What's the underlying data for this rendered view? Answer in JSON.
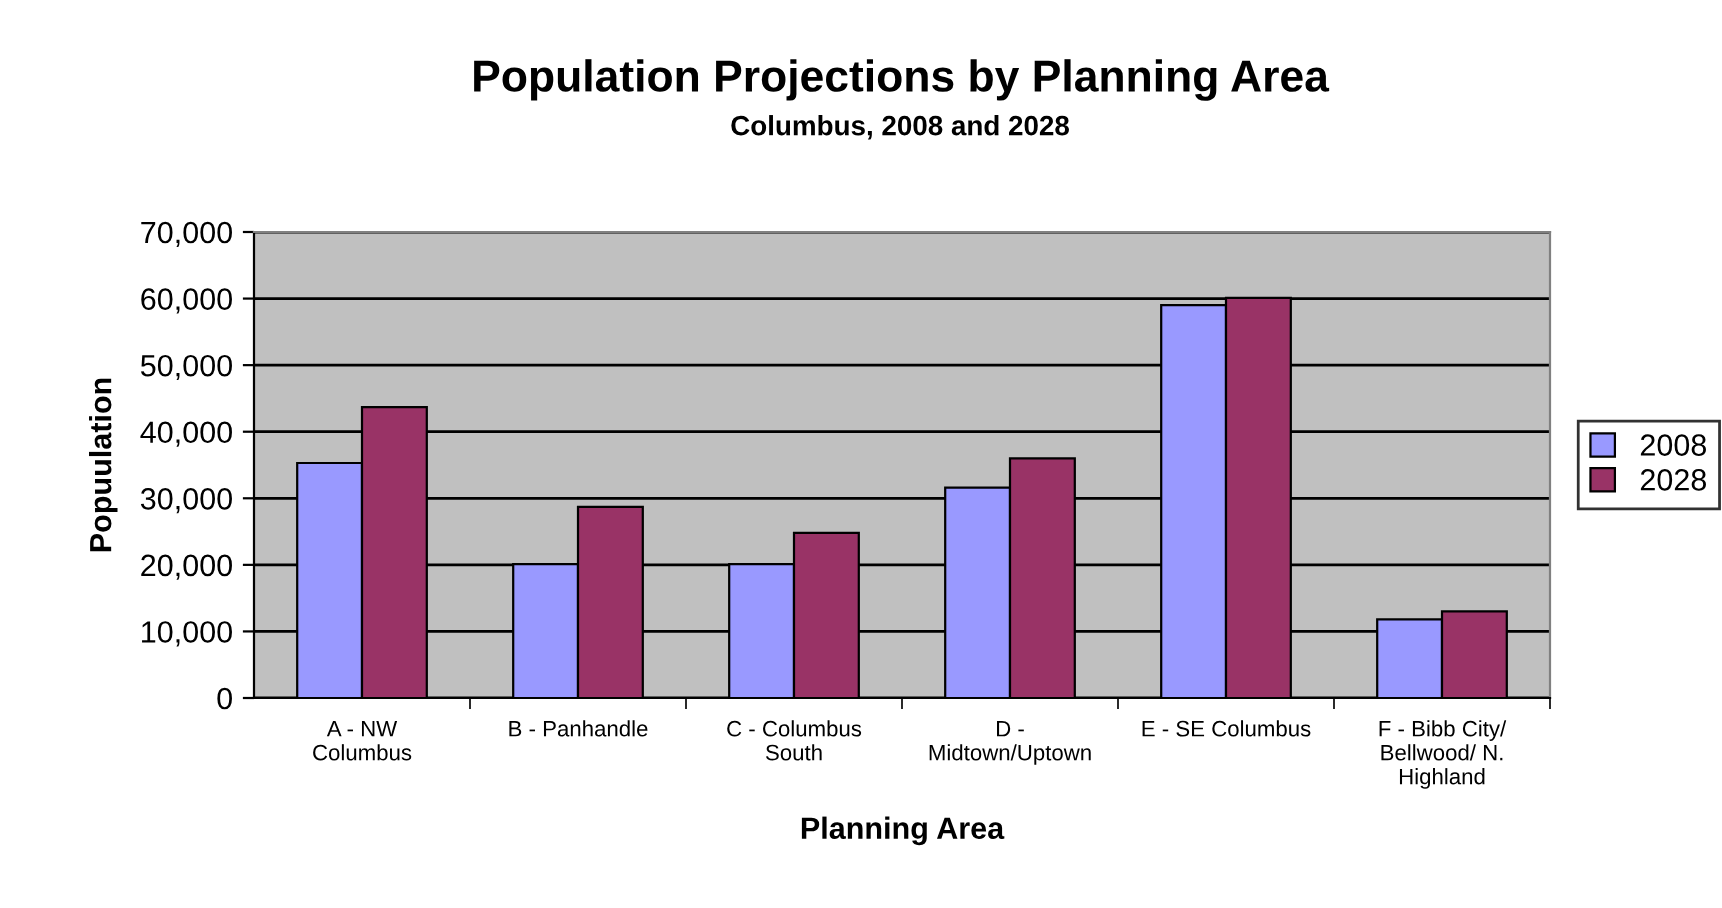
{
  "chart_data": {
    "type": "bar",
    "title": "Population Projections by Planning Area",
    "subtitle": "Columbus, 2008 and 2028",
    "xlabel": "Planning Area",
    "ylabel": "Popuulation",
    "categories": [
      "A - NW\nColumbus",
      "B - Panhandle",
      "C - Columbus\nSouth",
      "D -\nMidtown/Uptown",
      "E - SE Columbus",
      "F - Bibb City/\nBellwood/ N.\nHighland"
    ],
    "series": [
      {
        "name": "2008",
        "color": "#9999ff",
        "values": [
          35300,
          20100,
          20100,
          31600,
          59000,
          11800
        ]
      },
      {
        "name": "2028",
        "color": "#993366",
        "values": [
          43700,
          28700,
          24800,
          36000,
          60100,
          13000
        ]
      }
    ],
    "ylim": [
      0,
      70000
    ],
    "yticks": [
      {
        "value": 0,
        "label": "0"
      },
      {
        "value": 10000,
        "label": "10,000"
      },
      {
        "value": 20000,
        "label": "20,000"
      },
      {
        "value": 30000,
        "label": "30,000"
      },
      {
        "value": 40000,
        "label": "40,000"
      },
      {
        "value": 50000,
        "label": "50,000"
      },
      {
        "value": 60000,
        "label": "60,000"
      },
      {
        "value": 70000,
        "label": "70,000"
      }
    ],
    "grid": "y",
    "legend": "right"
  }
}
